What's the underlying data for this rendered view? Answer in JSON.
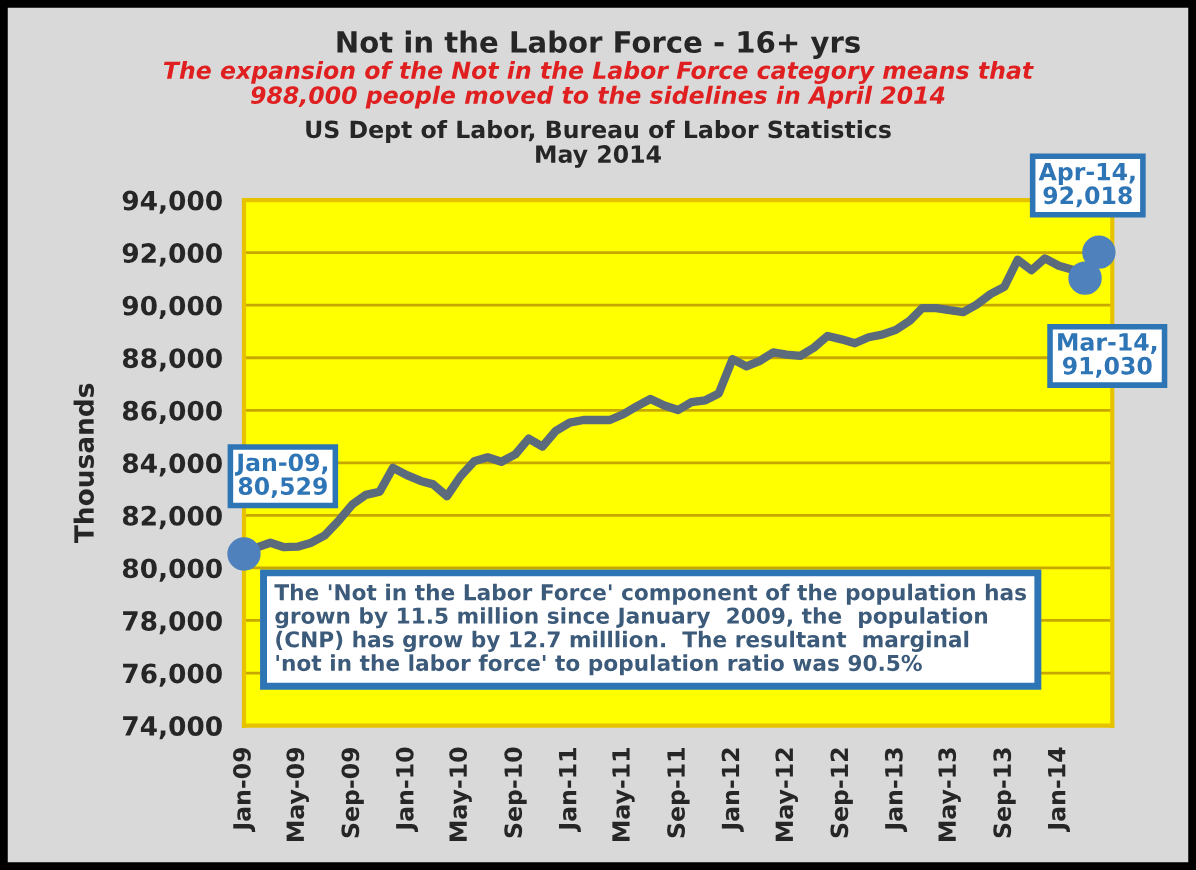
{
  "chart_data": {
    "type": "line",
    "title": "Not in the Labor Force - 16+ yrs",
    "subtitle": "The expansion of the Not in the Labor Force category means that\n988,000 people moved to the sidelines in April 2014",
    "ylabel": "Thousands",
    "x": [
      "2009-01",
      "2009-02",
      "2009-03",
      "2009-04",
      "2009-05",
      "2009-06",
      "2009-07",
      "2009-08",
      "2009-09",
      "2009-10",
      "2009-11",
      "2009-12",
      "2010-01",
      "2010-02",
      "2010-03",
      "2010-04",
      "2010-05",
      "2010-06",
      "2010-07",
      "2010-08",
      "2010-09",
      "2010-10",
      "2010-11",
      "2010-12",
      "2011-01",
      "2011-02",
      "2011-03",
      "2011-04",
      "2011-05",
      "2011-06",
      "2011-07",
      "2011-08",
      "2011-09",
      "2011-10",
      "2011-11",
      "2011-12",
      "2012-01",
      "2012-02",
      "2012-03",
      "2012-04",
      "2012-05",
      "2012-06",
      "2012-07",
      "2012-08",
      "2012-09",
      "2012-10",
      "2012-11",
      "2012-12",
      "2013-01",
      "2013-02",
      "2013-03",
      "2013-04",
      "2013-05",
      "2013-06",
      "2013-07",
      "2013-08",
      "2013-09",
      "2013-10",
      "2013-11",
      "2013-12",
      "2014-01",
      "2014-02",
      "2014-03",
      "2014-04"
    ],
    "series": [
      {
        "color": "#5b6b7b",
        "values": [
          80529,
          80790,
          80960,
          80790,
          80810,
          80960,
          81240,
          81790,
          82420,
          82780,
          82900,
          83810,
          83530,
          83310,
          83180,
          82730,
          83480,
          84060,
          84210,
          84040,
          84320,
          84920,
          84620,
          85220,
          85530,
          85630,
          85630,
          85630,
          85850,
          86160,
          86430,
          86180,
          86010,
          86310,
          86380,
          86640,
          87950,
          87670,
          87870,
          88200,
          88120,
          88070,
          88380,
          88830,
          88700,
          88550,
          88780,
          88880,
          89060,
          89410,
          89890,
          89890,
          89810,
          89740,
          90020,
          90420,
          90700,
          91730,
          91330,
          91780,
          91500,
          91350,
          91030,
          92018
        ]
      }
    ],
    "xlim": [
      "2009-01",
      "2014-05"
    ],
    "xticks": [
      {
        "value": "2009-01",
        "label": "Jan-09"
      },
      {
        "value": "2009-05",
        "label": "May-09"
      },
      {
        "value": "2009-09",
        "label": "Sep-09"
      },
      {
        "value": "2010-01",
        "label": "Jan-10"
      },
      {
        "value": "2010-05",
        "label": "May-10"
      },
      {
        "value": "2010-09",
        "label": "Sep-10"
      },
      {
        "value": "2011-01",
        "label": "Jan-11"
      },
      {
        "value": "2011-05",
        "label": "May-11"
      },
      {
        "value": "2011-09",
        "label": "Sep-11"
      },
      {
        "value": "2012-01",
        "label": "Jan-12"
      },
      {
        "value": "2012-05",
        "label": "May-12"
      },
      {
        "value": "2012-09",
        "label": "Sep-12"
      },
      {
        "value": "2013-01",
        "label": "Jan-13"
      },
      {
        "value": "2013-05",
        "label": "May-13"
      },
      {
        "value": "2013-09",
        "label": "Sep-13"
      },
      {
        "value": "2014-01",
        "label": "Jan-14"
      }
    ],
    "ylim": [
      74000,
      94000
    ],
    "yticks": [
      {
        "value": 74000,
        "label": "74,000"
      },
      {
        "value": 76000,
        "label": "76,000"
      },
      {
        "value": 78000,
        "label": "78,000"
      },
      {
        "value": 80000,
        "label": "80,000"
      },
      {
        "value": 82000,
        "label": "82,000"
      },
      {
        "value": 84000,
        "label": "84,000"
      },
      {
        "value": 86000,
        "label": "86,000"
      },
      {
        "value": 88000,
        "label": "88,000"
      },
      {
        "value": 90000,
        "label": "90,000"
      },
      {
        "value": 92000,
        "label": "92,000"
      },
      {
        "value": 94000,
        "label": "94,000"
      }
    ],
    "grid": "y",
    "marker": "none",
    "line_style": "solid",
    "legend": false,
    "annotations": [
      "US Dept of Labor, Bureau of Labor Statistics\nMay 2014",
      {
        "text": "Jan-09,\n80,529",
        "x": "2009-01",
        "y": 80529
      },
      {
        "text": "Mar-14,\n91,030",
        "x": "2014-03",
        "y": 91030
      },
      {
        "text": "Apr-14,\n92,018",
        "x": "2014-04",
        "y": 92018
      },
      "The 'Not in the Labor Force' component of the population has\ngrown by 11.5 million since January  2009, the  population\n(CNP) has grow by 12.7 milllion.  The resultant  marginal\n'not in the labor force' to population ratio was 90.5%"
    ]
  }
}
